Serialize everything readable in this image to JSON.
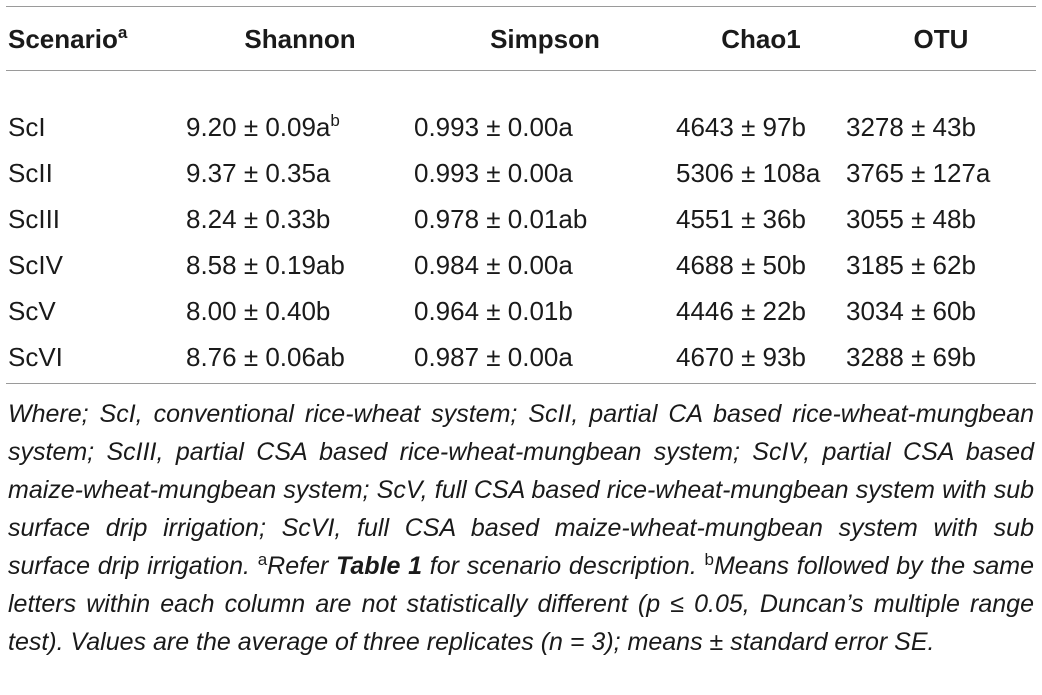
{
  "table": {
    "headers": {
      "scenario": "Scenario",
      "scenario_sup": "a",
      "shannon": "Shannon",
      "simpson": "Simpson",
      "chao1": "Chao1",
      "otu": "OTU"
    },
    "rows": [
      {
        "scenario": "ScI",
        "shannon": "9.20 ± 0.09a",
        "shannon_sup": "b",
        "simpson": "0.993 ± 0.00a",
        "chao1": "4643 ± 97b",
        "otu": "3278 ± 43b"
      },
      {
        "scenario": "ScII",
        "shannon": "9.37 ± 0.35a",
        "simpson": "0.993 ± 0.00a",
        "chao1": "5306 ± 108a",
        "otu": "3765 ± 127a"
      },
      {
        "scenario": "ScIII",
        "shannon": "8.24 ± 0.33b",
        "simpson": "0.978 ± 0.01ab",
        "chao1": "4551 ± 36b",
        "otu": "3055 ± 48b"
      },
      {
        "scenario": "ScIV",
        "shannon": "8.58 ± 0.19ab",
        "simpson": "0.984 ± 0.00a",
        "chao1": "4688 ± 50b",
        "otu": "3185 ± 62b"
      },
      {
        "scenario": "ScV",
        "shannon": "8.00 ± 0.40b",
        "simpson": "0.964 ± 0.01b",
        "chao1": "4446 ± 22b",
        "otu": "3034 ± 60b"
      },
      {
        "scenario": "ScVI",
        "shannon": "8.76 ± 0.06ab",
        "simpson": "0.987 ± 0.00a",
        "chao1": "4670 ± 93b",
        "otu": "3288 ± 69b"
      }
    ]
  },
  "footnote": {
    "where": "Where; ScI, conventional rice-wheat system; ScII, partial CA based rice-wheat-mungbean system; ScIII, partial CSA based rice-wheat-mungbean system; ScIV, partial CSA based maize-wheat-mungbean system; ScV, full CSA based rice-wheat-mungbean system with sub surface drip irrigation; ScVI, full CSA based maize-wheat-mungbean system with sub surface drip irrigation.",
    "a_mark": "a",
    "a_text_before": "Refer ",
    "a_ref": "Table 1",
    "a_text_after": " for scenario description.",
    "b_mark": "b",
    "b_text": "Means followed by the same letters within each column are not statistically different (p ≤ 0.05, Duncan’s multiple range test). Values are the average of three replicates (n = 3); means ± standard error SE."
  }
}
